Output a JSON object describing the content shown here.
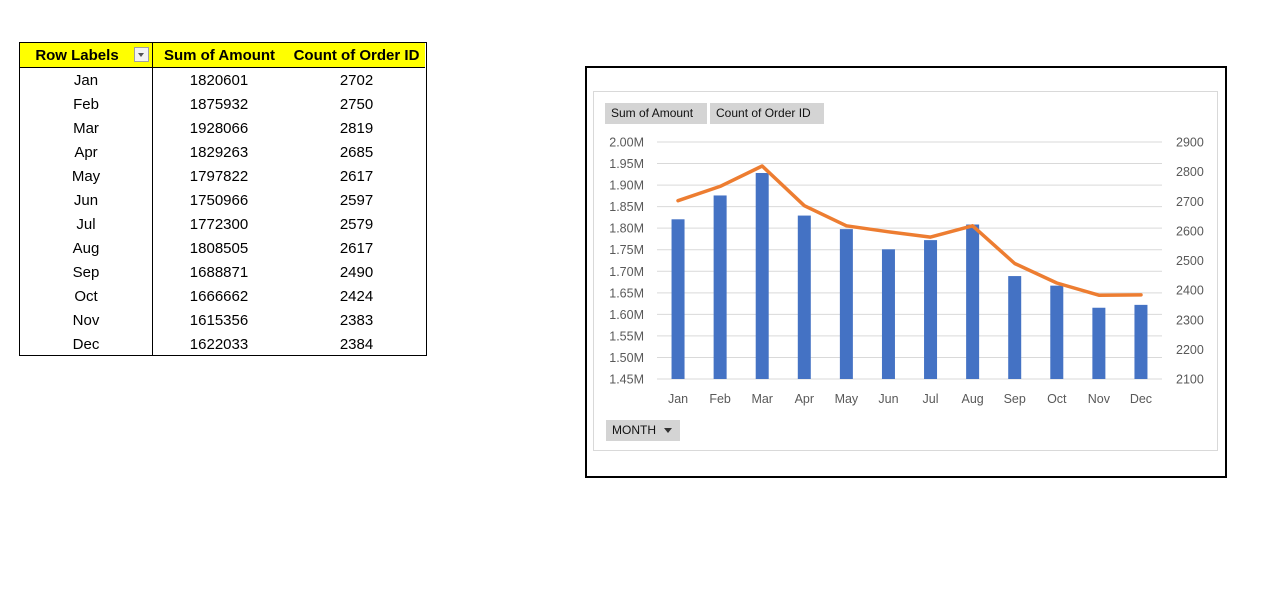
{
  "pivot": {
    "headers": {
      "row_labels": "Row Labels",
      "sum": "Sum of Amount",
      "count": "Count of Order ID"
    },
    "filter_icon": "dropdown-arrow-icon",
    "rows": [
      {
        "month": "Jan",
        "sum": "1820601",
        "count": "2702"
      },
      {
        "month": "Feb",
        "sum": "1875932",
        "count": "2750"
      },
      {
        "month": "Mar",
        "sum": "1928066",
        "count": "2819"
      },
      {
        "month": "Apr",
        "sum": "1829263",
        "count": "2685"
      },
      {
        "month": "May",
        "sum": "1797822",
        "count": "2617"
      },
      {
        "month": "Jun",
        "sum": "1750966",
        "count": "2597"
      },
      {
        "month": "Jul",
        "sum": "1772300",
        "count": "2579"
      },
      {
        "month": "Aug",
        "sum": "1808505",
        "count": "2617"
      },
      {
        "month": "Sep",
        "sum": "1688871",
        "count": "2490"
      },
      {
        "month": "Oct",
        "sum": "1666662",
        "count": "2424"
      },
      {
        "month": "Nov",
        "sum": "1615356",
        "count": "2383"
      },
      {
        "month": "Dec",
        "sum": "1622033",
        "count": "2384"
      }
    ],
    "header_color": "#ffff00"
  },
  "chart": {
    "field_buttons": {
      "sum": "Sum of Amount",
      "count": "Count of Order ID",
      "axis": "MONTH"
    }
  },
  "chart_data": {
    "type": "bar",
    "categories": [
      "Jan",
      "Feb",
      "Mar",
      "Apr",
      "May",
      "Jun",
      "Jul",
      "Aug",
      "Sep",
      "Oct",
      "Nov",
      "Dec"
    ],
    "series": [
      {
        "name": "Sum of Amount",
        "type": "bar",
        "axis": "left",
        "color": "#4472c4",
        "values": [
          1820601,
          1875932,
          1928066,
          1829263,
          1797822,
          1750966,
          1772300,
          1808505,
          1688871,
          1666662,
          1615356,
          1622033
        ]
      },
      {
        "name": "Count of Order ID",
        "type": "line",
        "axis": "right",
        "color": "#ed7d31",
        "values": [
          2702,
          2750,
          2819,
          2685,
          2617,
          2597,
          2579,
          2617,
          2490,
          2424,
          2383,
          2384
        ]
      }
    ],
    "y_left": {
      "min": 1450000,
      "max": 2000000,
      "step": 50000,
      "tick_labels": [
        "1.45M",
        "1.50M",
        "1.55M",
        "1.60M",
        "1.65M",
        "1.70M",
        "1.75M",
        "1.80M",
        "1.85M",
        "1.90M",
        "1.95M",
        "2.00M"
      ]
    },
    "y_right": {
      "min": 2100,
      "max": 2900,
      "step": 100,
      "tick_labels": [
        "2100",
        "2200",
        "2300",
        "2400",
        "2500",
        "2600",
        "2700",
        "2800",
        "2900"
      ]
    },
    "grid": true,
    "legend": "none"
  }
}
